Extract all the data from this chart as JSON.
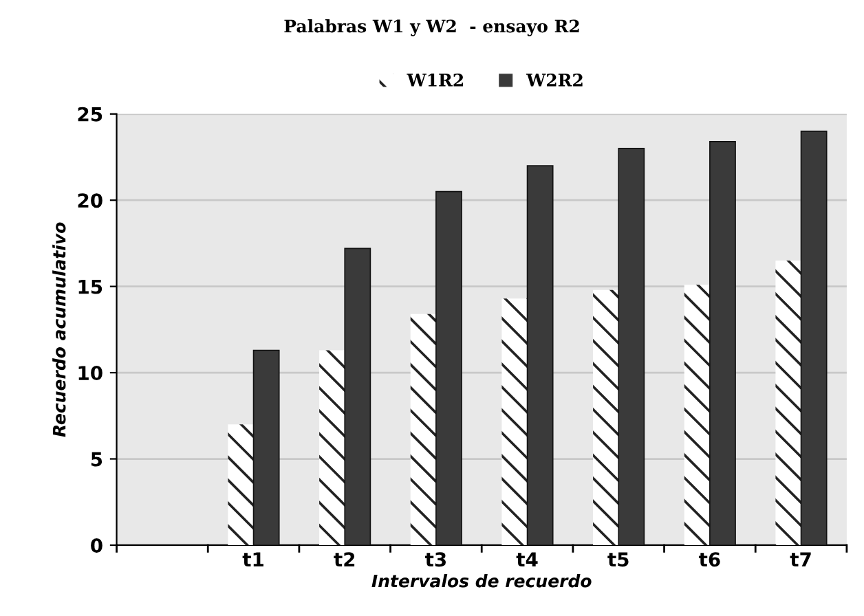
{
  "chart_data": {
    "type": "bar",
    "title": "Palabras W1 y W2  - ensayo R2",
    "xlabel": "Intervalos de recuerdo",
    "ylabel": "Recuerdo acumulativo",
    "categories": [
      null,
      "t1",
      "t2",
      "t3",
      "t4",
      "t5",
      "t6",
      "t7"
    ],
    "series": [
      {
        "name": "W1R2",
        "color": "#ffffff",
        "values": [
          null,
          7.0,
          11.3,
          13.4,
          14.3,
          14.8,
          15.1,
          16.5
        ]
      },
      {
        "name": "W2R2",
        "color": "#3a3a3a",
        "values": [
          null,
          11.3,
          17.2,
          20.5,
          22.0,
          23.0,
          23.4,
          24.0
        ]
      }
    ],
    "ylim": [
      0,
      25
    ],
    "yticks": [
      0,
      5,
      10,
      15,
      20,
      25
    ],
    "grid": "y",
    "legend": "top"
  }
}
